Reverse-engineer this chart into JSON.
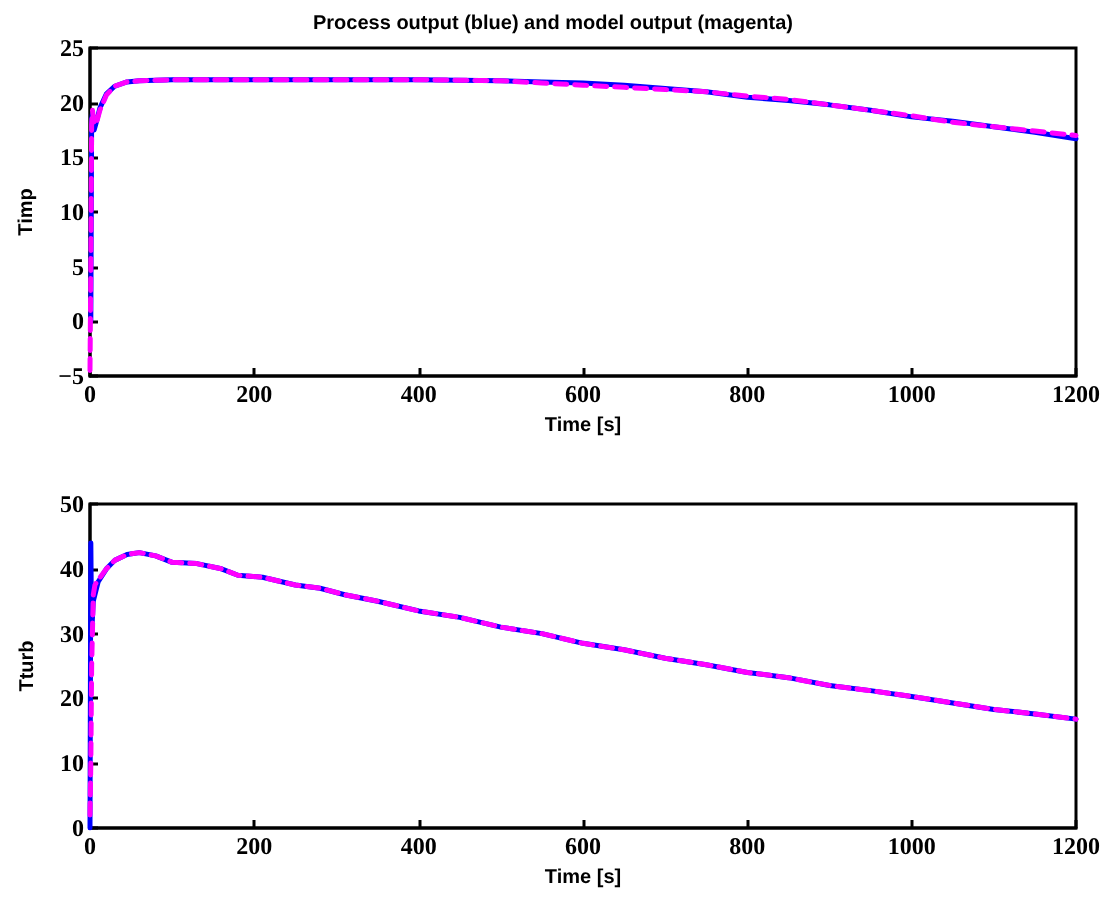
{
  "chart_data": [
    {
      "type": "line",
      "title": "Process output (blue) and model output (magenta)",
      "xlabel": "Time [s]",
      "ylabel": "Timp",
      "xlim": [
        0,
        1200
      ],
      "xticks": [
        0,
        200,
        400,
        600,
        800,
        1000,
        1200
      ],
      "ylim": [
        -5,
        25
      ],
      "yticks": [
        -5,
        0,
        5,
        10,
        15,
        20,
        25
      ],
      "grid": false,
      "marker": "none",
      "series": [
        {
          "color": "#0000ff",
          "line_style": "solid",
          "x": [
            1,
            2,
            3,
            5,
            8,
            12,
            20,
            30,
            45,
            60,
            100,
            200,
            300,
            400,
            500,
            550,
            600,
            650,
            700,
            750,
            800,
            850,
            900,
            950,
            1000,
            1050,
            1100,
            1150,
            1200
          ],
          "values": [
            0,
            18.5,
            19,
            17.5,
            18.3,
            19.5,
            20.8,
            21.5,
            21.9,
            22,
            22.1,
            22.1,
            22.1,
            22.1,
            22,
            21.9,
            21.8,
            21.6,
            21.3,
            21,
            20.5,
            20.2,
            19.8,
            19.3,
            18.7,
            18.3,
            17.8,
            17.3,
            16.7
          ]
        },
        {
          "color": "#ff00ff",
          "line_style": "dashed",
          "x": [
            0,
            1,
            2,
            3,
            5,
            8,
            12,
            20,
            30,
            45,
            60,
            100,
            200,
            300,
            400,
            500,
            550,
            600,
            650,
            700,
            750,
            800,
            850,
            900,
            950,
            1000,
            1050,
            1100,
            1150,
            1200
          ],
          "values": [
            -4.5,
            5,
            18,
            19.3,
            18,
            18.2,
            19.3,
            20.7,
            21.5,
            21.9,
            22,
            22.1,
            22.1,
            22.1,
            22.1,
            22,
            21.8,
            21.6,
            21.4,
            21.2,
            21,
            20.6,
            20.3,
            19.8,
            19.3,
            18.8,
            18.2,
            17.8,
            17.4,
            17
          ]
        }
      ]
    },
    {
      "type": "line",
      "xlabel": "Time [s]",
      "ylabel": "Tturb",
      "xlim": [
        0,
        1200
      ],
      "xticks": [
        0,
        200,
        400,
        600,
        800,
        1000,
        1200
      ],
      "ylim": [
        0,
        50
      ],
      "yticks": [
        0,
        10,
        20,
        30,
        40,
        50
      ],
      "grid": false,
      "marker": "none",
      "series": [
        {
          "color": "#0000ff",
          "line_style": "solid",
          "x": [
            0,
            1,
            2,
            4,
            6,
            10,
            20,
            30,
            45,
            60,
            80,
            100,
            130,
            160,
            180,
            210,
            250,
            280,
            310,
            350,
            400,
            450,
            500,
            550,
            600,
            650,
            700,
            750,
            800,
            850,
            900,
            950,
            1000,
            1050,
            1100,
            1150,
            1200
          ],
          "values": [
            0,
            44,
            30,
            35,
            36,
            38,
            40,
            41.3,
            42.2,
            42.5,
            42,
            41,
            40.8,
            40,
            39,
            38.7,
            37.5,
            37,
            36,
            35,
            33.5,
            32.5,
            31,
            30,
            28.5,
            27.5,
            26.2,
            25.2,
            24,
            23.2,
            22,
            21.2,
            20.3,
            19.3,
            18.3,
            17.6,
            16.8
          ]
        },
        {
          "color": "#ff00ff",
          "line_style": "dashed",
          "x": [
            0,
            1,
            2,
            4,
            6,
            10,
            20,
            30,
            45,
            60,
            80,
            100,
            130,
            160,
            180,
            210,
            250,
            280,
            310,
            350,
            400,
            450,
            500,
            550,
            600,
            650,
            700,
            750,
            800,
            850,
            900,
            950,
            1000,
            1050,
            1100,
            1150,
            1200
          ],
          "values": [
            2,
            10,
            25,
            36,
            37.5,
            38.3,
            40,
            41.3,
            42.2,
            42.5,
            42,
            41,
            40.8,
            40,
            39,
            38.7,
            37.5,
            37,
            36,
            35,
            33.5,
            32.5,
            31,
            30,
            28.5,
            27.5,
            26.2,
            25.2,
            24,
            23.2,
            22,
            21.2,
            20.3,
            19.3,
            18.3,
            17.6,
            16.8
          ]
        }
      ]
    }
  ]
}
